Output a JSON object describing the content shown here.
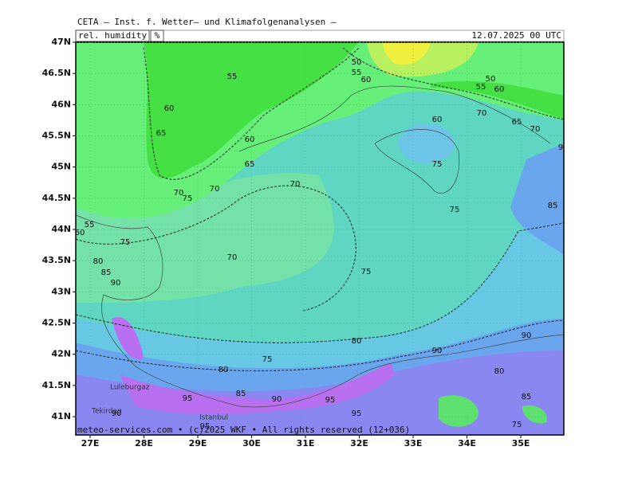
{
  "header": {
    "title": "CETA — Inst. f. Wetter— und Klimafolgenanalysen —",
    "field": "rel. humidity",
    "unit": "%",
    "datetime": "12.07.2025 00 UTC"
  },
  "map": {
    "lat_ticks": [
      "47N",
      "46.5N",
      "46N",
      "45.5N",
      "45N",
      "44.5N",
      "44N",
      "43.5N",
      "43N",
      "42.5N",
      "42N",
      "41.5N",
      "41N"
    ],
    "lon_ticks": [
      "27E",
      "28E",
      "29E",
      "30E",
      "31E",
      "32E",
      "33E",
      "34E",
      "35E"
    ],
    "contour_labels": [
      "50",
      "55",
      "60",
      "50",
      "55",
      "60",
      "70",
      "65",
      "70",
      "60",
      "75",
      "75",
      "85",
      "55",
      "60",
      "65",
      "60",
      "65",
      "70",
      "70",
      "70",
      "75",
      "55",
      "60",
      "75",
      "70",
      "80",
      "85",
      "90",
      "75",
      "80",
      "75",
      "80",
      "85",
      "90",
      "95",
      "95",
      "95",
      "90",
      "90",
      "80",
      "85",
      "75",
      "90",
      "95",
      "9"
    ],
    "places": [
      "Luleburgaz",
      "Tekirdag",
      "Istanbul"
    ],
    "credit": "meteo-services.com • (c)2025 WKF • All rights reserved (12+036)"
  }
}
